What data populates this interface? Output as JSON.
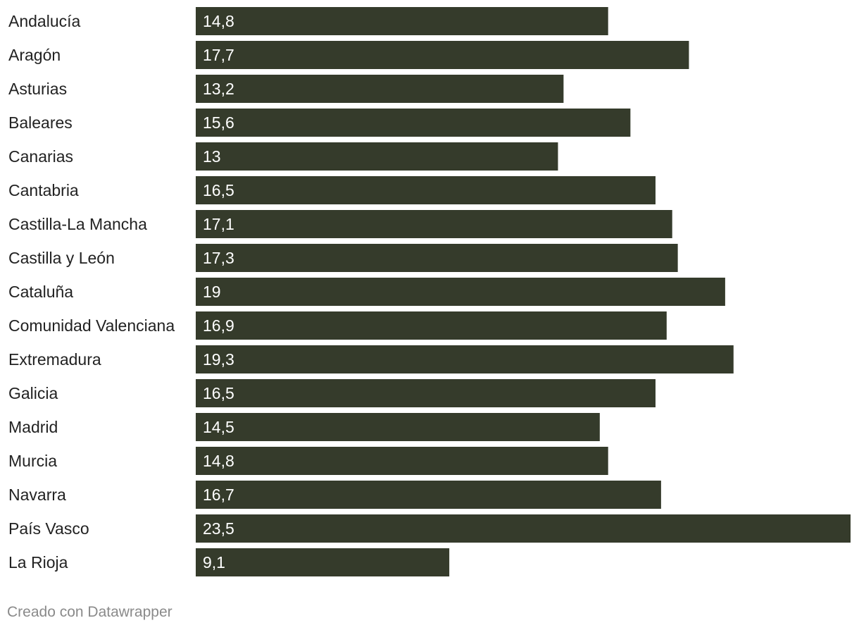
{
  "chart_data": {
    "type": "bar",
    "orientation": "horizontal",
    "categories": [
      "Andalucía",
      "Aragón",
      "Asturias",
      "Baleares",
      "Canarias",
      "Cantabria",
      "Castilla-La Mancha",
      "Castilla y León",
      "Cataluña",
      "Comunidad Valenciana",
      "Extremadura",
      "Galicia",
      "Madrid",
      "Murcia",
      "Navarra",
      "País Vasco",
      "La Rioja"
    ],
    "values": [
      14.8,
      17.7,
      13.2,
      15.6,
      13,
      16.5,
      17.1,
      17.3,
      19,
      16.9,
      19.3,
      16.5,
      14.5,
      14.8,
      16.7,
      23.5,
      9.1
    ],
    "value_labels": [
      "14,8",
      "17,7",
      "13,2",
      "15,6",
      "13",
      "16,5",
      "17,1",
      "17,3",
      "19",
      "16,9",
      "19,3",
      "16,5",
      "14,5",
      "14,8",
      "16,7",
      "23,5",
      "9,1"
    ],
    "xlim": [
      0,
      23.5
    ],
    "grid": false,
    "bar_color": "#353b2b",
    "label_color": "#222222",
    "value_label_color": "#ffffff"
  },
  "footer": {
    "credit": "Creado con Datawrapper"
  }
}
